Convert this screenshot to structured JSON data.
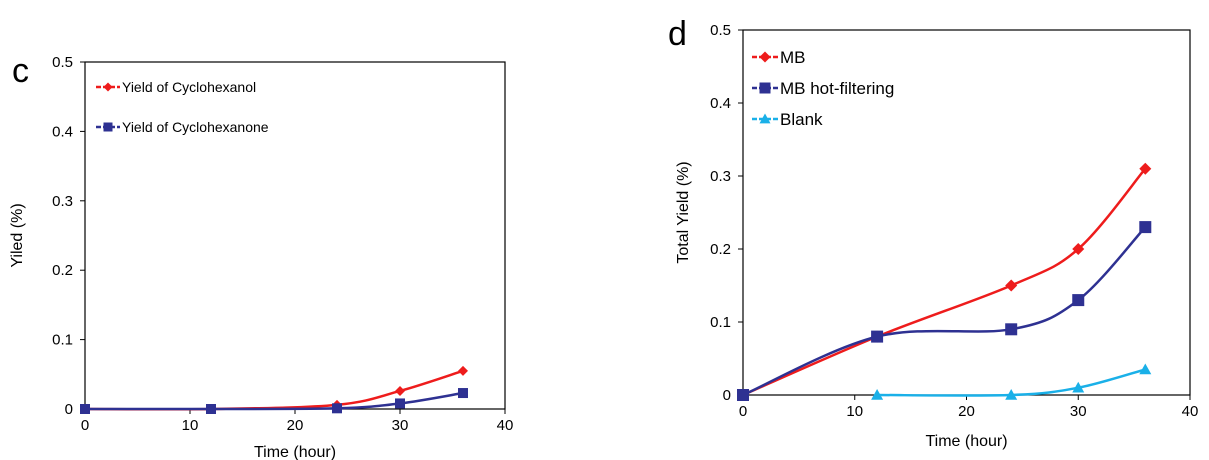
{
  "chart_data": [
    {
      "type": "line",
      "panel_label": "c",
      "title": "",
      "xlabel": "Time (hour)",
      "ylabel": "Yiled (%)",
      "xlim": [
        0,
        40
      ],
      "ylim": [
        0,
        0.5
      ],
      "x_ticks": [
        "0",
        "10",
        "20",
        "30",
        "40"
      ],
      "y_ticks": [
        "0",
        "0.1",
        "0.2",
        "0.3",
        "0.4",
        "0.5"
      ],
      "grid": false,
      "legend_position": "top-left",
      "series": [
        {
          "name": "Yield of Cyclohexanol",
          "color": "#ee1c1c",
          "marker": "diamond",
          "x": [
            0,
            12,
            24,
            30,
            36
          ],
          "y": [
            0,
            0,
            0.006,
            0.026,
            0.055
          ]
        },
        {
          "name": "Yield of Cyclohexanone",
          "color": "#2e3192",
          "marker": "square",
          "x": [
            0,
            12,
            24,
            30,
            36
          ],
          "y": [
            0,
            0,
            0.001,
            0.008,
            0.023
          ]
        }
      ]
    },
    {
      "type": "line",
      "panel_label": "d",
      "title": "",
      "xlabel": "Time (hour)",
      "ylabel": "Total Yield (%)",
      "xlim": [
        0,
        40
      ],
      "ylim": [
        0,
        0.5
      ],
      "x_ticks": [
        "0",
        "10",
        "20",
        "30",
        "40"
      ],
      "y_ticks": [
        "0",
        "0.1",
        "0.2",
        "0.3",
        "0.4",
        "0.5"
      ],
      "grid": false,
      "legend_position": "top-left",
      "series": [
        {
          "name": "MB",
          "color": "#ee1c1c",
          "marker": "diamond",
          "x": [
            0,
            12,
            24,
            30,
            36
          ],
          "y": [
            0,
            0.08,
            0.15,
            0.2,
            0.31
          ]
        },
        {
          "name": "MB hot-filtering",
          "color": "#2e3192",
          "marker": "square",
          "x": [
            0,
            12,
            24,
            30,
            36
          ],
          "y": [
            0,
            0.08,
            0.09,
            0.13,
            0.23
          ]
        },
        {
          "name": "Blank",
          "color": "#1ab0e8",
          "marker": "triangle",
          "x": [
            12,
            24,
            30,
            36
          ],
          "y": [
            0,
            0,
            0.01,
            0.035
          ]
        }
      ]
    }
  ]
}
